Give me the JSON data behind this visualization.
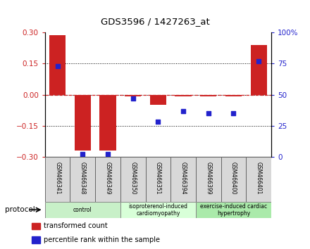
{
  "title": "GDS3596 / 1427263_at",
  "samples": [
    "GSM466341",
    "GSM466348",
    "GSM466349",
    "GSM466350",
    "GSM466351",
    "GSM466394",
    "GSM466399",
    "GSM466400",
    "GSM466401"
  ],
  "red_bars": [
    0.285,
    -0.27,
    -0.27,
    -0.01,
    -0.05,
    -0.01,
    -0.01,
    -0.01,
    0.24
  ],
  "blue_pct": [
    73,
    2,
    2,
    47,
    28,
    37,
    35,
    35,
    77
  ],
  "ylim": [
    -0.3,
    0.3
  ],
  "yticks_left": [
    -0.3,
    -0.15,
    0.0,
    0.15,
    0.3
  ],
  "yticks_right": [
    0,
    25,
    50,
    75,
    100
  ],
  "bar_color": "#cc2222",
  "dot_color": "#2222cc",
  "zero_line_color": "#cc2222",
  "protocol_groups": [
    {
      "label": "control",
      "start": 0,
      "end": 3,
      "color": "#c8f0c8"
    },
    {
      "label": "isoproterenol-induced\ncardiomyopathy",
      "start": 3,
      "end": 6,
      "color": "#d8ffd8"
    },
    {
      "label": "exercise-induced cardiac\nhypertrophy",
      "start": 6,
      "end": 9,
      "color": "#aaeaaa"
    }
  ],
  "legend_items": [
    {
      "label": "transformed count",
      "color": "#cc2222"
    },
    {
      "label": "percentile rank within the sample",
      "color": "#2222cc"
    }
  ],
  "protocol_label": "protocol"
}
